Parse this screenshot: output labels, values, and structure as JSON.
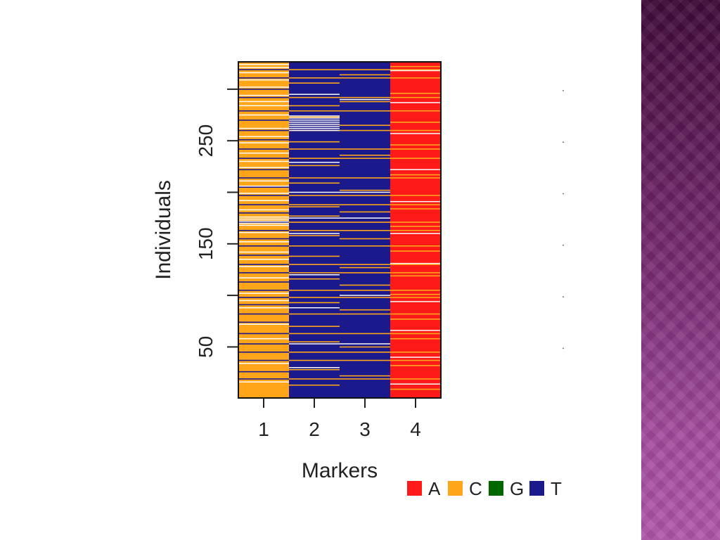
{
  "slide": {
    "band_colors": [
      "#3f0a38",
      "#b055a8"
    ]
  },
  "chart_data": {
    "type": "heatmap",
    "xlabel": "Markers",
    "ylabel": "Individuals",
    "categories": [
      "1",
      "2",
      "3",
      "4"
    ],
    "y_range": [
      1,
      326
    ],
    "y_ticks": [
      50,
      100,
      150,
      200,
      250,
      300
    ],
    "y_tick_labels": [
      "50",
      "",
      "150",
      "",
      "250",
      ""
    ],
    "grid": false,
    "legend_position": "bottom-right",
    "legend": [
      {
        "label": "A",
        "color": "#ff1a1a"
      },
      {
        "label": "C",
        "color": "#ffa51a"
      },
      {
        "label": "G",
        "color": "#006600"
      },
      {
        "label": "T",
        "color": "#1a1a8c"
      }
    ],
    "markers": [
      {
        "name": "1",
        "dominant_allele": "C",
        "secondary_allele": "T"
      },
      {
        "name": "2",
        "dominant_allele": "T",
        "secondary_allele": "C"
      },
      {
        "name": "3",
        "dominant_allele": "T",
        "secondary_allele": "C"
      },
      {
        "name": "4",
        "dominant_allele": "A",
        "secondary_allele": "C"
      }
    ],
    "shared_minor_rows": [
      19,
      37,
      45,
      63,
      82,
      98,
      105,
      122,
      130,
      148,
      163,
      171,
      188,
      197,
      214,
      233,
      242,
      260,
      279,
      292,
      311,
      319
    ],
    "marker_minor_rows": {
      "1": [
        26,
        53,
        74,
        91,
        113,
        139,
        155,
        180,
        205,
        222,
        251,
        270,
        300
      ],
      "2": [
        13,
        28,
        55,
        70,
        93,
        116,
        138,
        158,
        177,
        186,
        209,
        226,
        249,
        273,
        284,
        306
      ],
      "3": [
        22,
        50,
        86,
        110,
        127,
        155,
        181,
        202,
        236,
        265,
        288,
        314
      ],
      "4": [
        9,
        32,
        58,
        77,
        101,
        119,
        143,
        167,
        184,
        217,
        246,
        268,
        296,
        322
      ]
    },
    "missing_rows": {
      "1": [
        16,
        34,
        58,
        72,
        88,
        95,
        102,
        117,
        128,
        135,
        142,
        152,
        161,
        168,
        170,
        172,
        174,
        176,
        183,
        192,
        199,
        206,
        211,
        224,
        230,
        238,
        248,
        254,
        262,
        275,
        284,
        288,
        294,
        302,
        309,
        316,
        321,
        324
      ],
      "2": [
        30,
        53,
        88,
        120,
        160,
        175,
        200,
        229,
        260,
        262,
        264,
        266,
        268,
        270,
        272,
        274,
        295
      ],
      "3": [
        53,
        100,
        175,
        200,
        290
      ],
      "4": [
        14,
        40,
        66,
        94,
        131,
        160,
        191,
        222,
        257,
        287,
        318
      ]
    }
  }
}
